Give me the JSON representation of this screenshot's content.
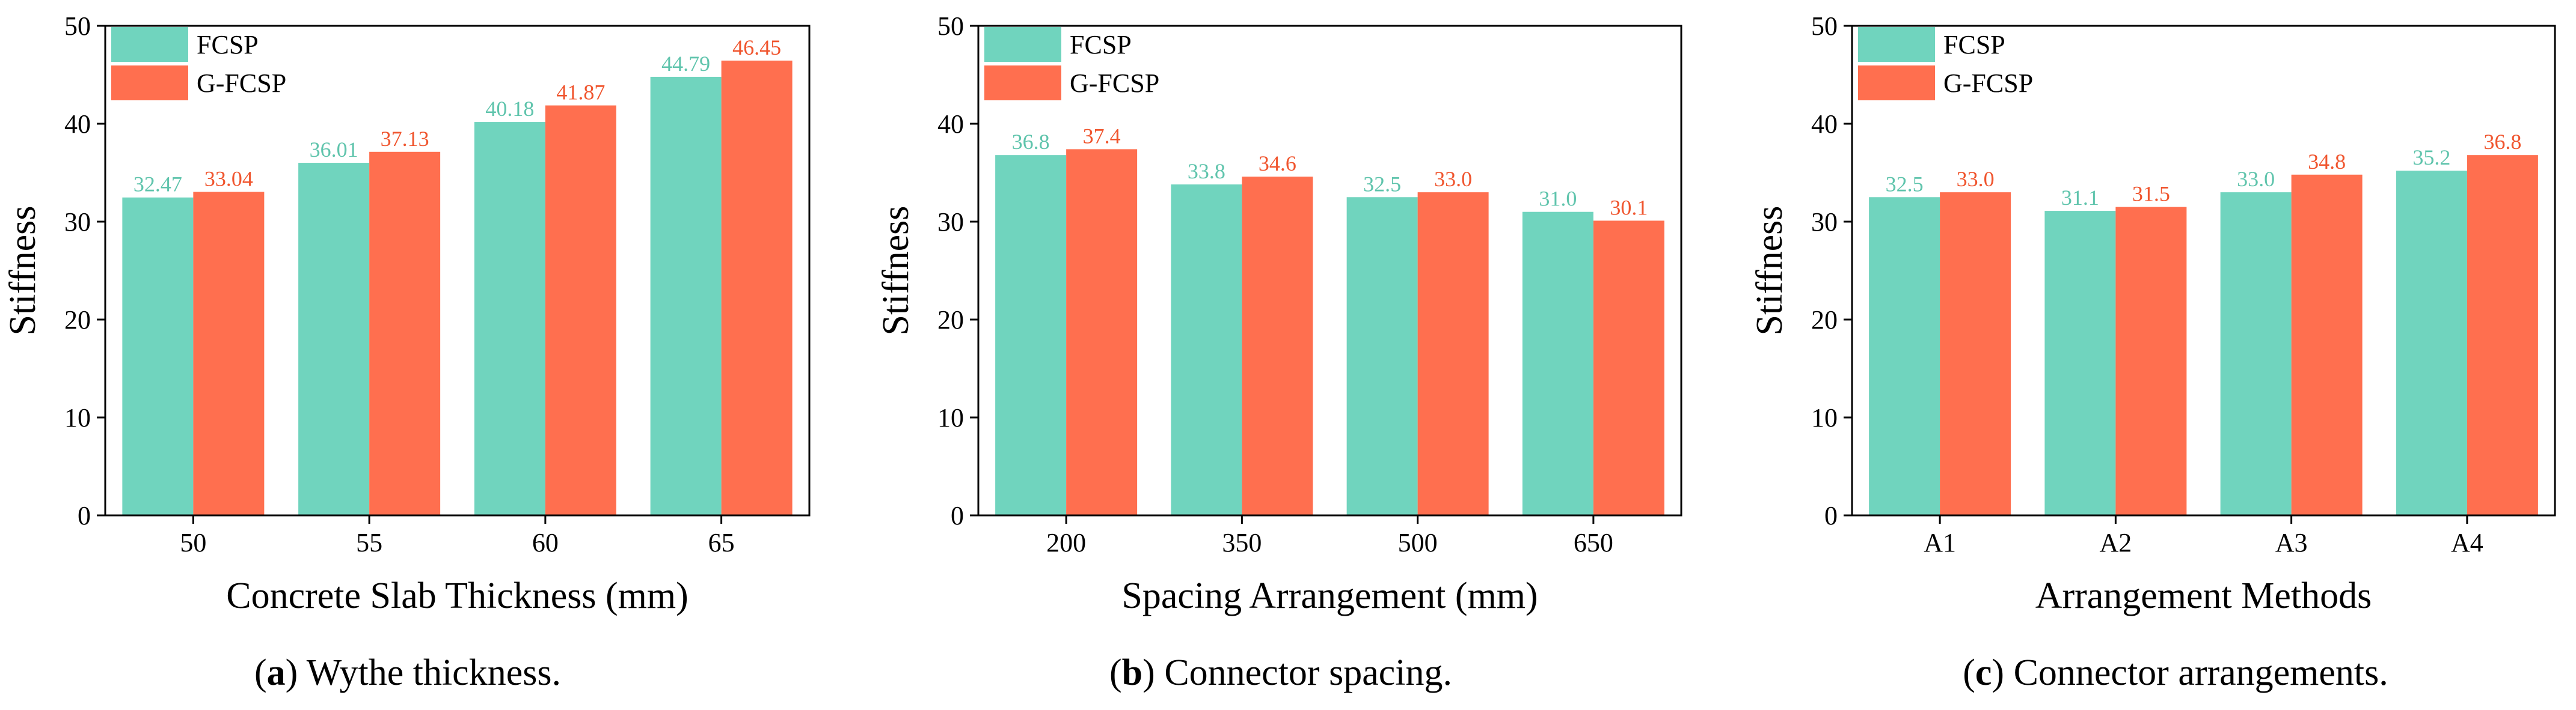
{
  "colors": {
    "fcsp": "#70D4BE",
    "gfcsp": "#FF6F4F",
    "fcsp_label": "#5FC4AC",
    "gfcsp_label": "#F0552E",
    "axis": "#000000"
  },
  "chart_data": [
    {
      "type": "bar",
      "title": "",
      "caption_letter": "a",
      "caption_text": " Wythe thickness.",
      "xlabel": "Concrete Slab Thickness (mm)",
      "ylabel": "Stiffness",
      "ylim": [
        0,
        50
      ],
      "yticks": [
        "0",
        "10",
        "20",
        "30",
        "40",
        "50"
      ],
      "categories": [
        "50",
        "55",
        "60",
        "65"
      ],
      "series": [
        {
          "name": "FCSP",
          "values": [
            32.47,
            36.01,
            40.18,
            44.79
          ],
          "labels": [
            "32.47",
            "36.01",
            "40.18",
            "44.79"
          ]
        },
        {
          "name": "G-FCSP",
          "values": [
            33.04,
            37.13,
            41.87,
            46.45
          ],
          "labels": [
            "33.04",
            "37.13",
            "41.87",
            "46.45"
          ]
        }
      ],
      "legend": "top-left"
    },
    {
      "type": "bar",
      "title": "",
      "caption_letter": "b",
      "caption_text": " Connector spacing.",
      "xlabel": "Spacing Arrangement (mm)",
      "ylabel": "Stiffness",
      "ylim": [
        0,
        50
      ],
      "yticks": [
        "0",
        "10",
        "20",
        "30",
        "40",
        "50"
      ],
      "categories": [
        "200",
        "350",
        "500",
        "650"
      ],
      "series": [
        {
          "name": "FCSP",
          "values": [
            36.8,
            33.8,
            32.5,
            31.0
          ],
          "labels": [
            "36.8",
            "33.8",
            "32.5",
            "31.0"
          ]
        },
        {
          "name": "G-FCSP",
          "values": [
            37.4,
            34.6,
            33.0,
            30.1
          ],
          "labels": [
            "37.4",
            "34.6",
            "33.0",
            "30.1"
          ]
        }
      ],
      "legend": "top-left"
    },
    {
      "type": "bar",
      "title": "",
      "caption_letter": "c",
      "caption_text": " Connector arrangements.",
      "xlabel": "Arrangement Methods",
      "ylabel": "Stiffness",
      "ylim": [
        0,
        50
      ],
      "yticks": [
        "0",
        "10",
        "20",
        "30",
        "40",
        "50"
      ],
      "categories": [
        "A1",
        "A2",
        "A3",
        "A4"
      ],
      "series": [
        {
          "name": "FCSP",
          "values": [
            32.5,
            31.1,
            33.0,
            35.2
          ],
          "labels": [
            "32.5",
            "31.1",
            "33.0",
            "35.2"
          ]
        },
        {
          "name": "G-FCSP",
          "values": [
            33.0,
            31.5,
            34.8,
            36.8
          ],
          "labels": [
            "33.0",
            "31.5",
            "34.8",
            "36.8"
          ]
        }
      ],
      "legend": "top-left"
    }
  ]
}
